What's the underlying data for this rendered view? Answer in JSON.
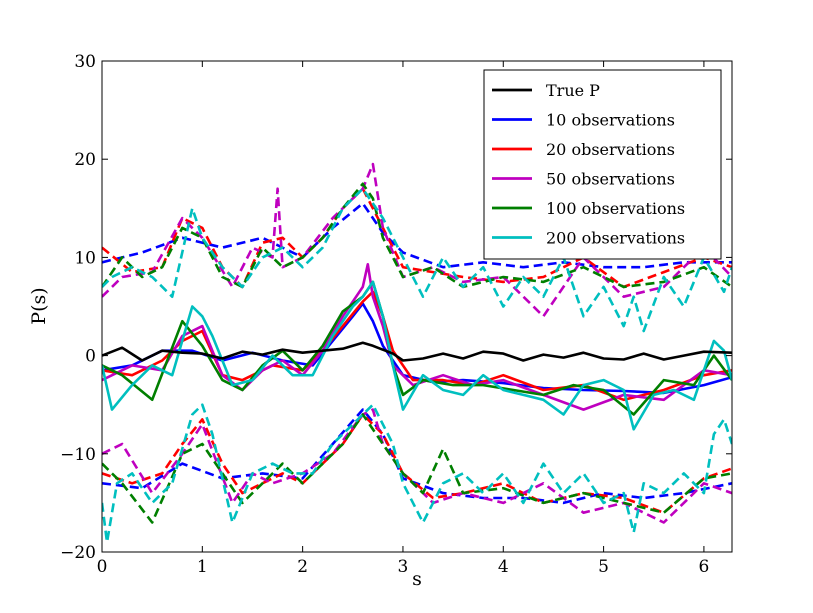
{
  "chart_data": {
    "type": "line",
    "title": "",
    "xlabel": "s",
    "ylabel": "P(s)",
    "xlim": [
      0,
      6.28
    ],
    "ylim": [
      -20,
      30
    ],
    "xticks": [
      0,
      1,
      2,
      3,
      4,
      5,
      6
    ],
    "yticks": [
      -20,
      -10,
      0,
      10,
      20,
      30
    ],
    "ytick_labels": [
      "−20",
      "−10",
      "0",
      "10",
      "20",
      "30"
    ],
    "legend_position": "top-right",
    "series": [
      {
        "name": "True P",
        "color": "#000000",
        "style": "solid",
        "x": [
          0,
          0.2,
          0.4,
          0.6,
          0.8,
          1.0,
          1.2,
          1.4,
          1.6,
          1.8,
          2.0,
          2.2,
          2.4,
          2.5,
          2.6,
          2.7,
          2.8,
          2.9,
          3.0,
          3.2,
          3.4,
          3.6,
          3.8,
          4.0,
          4.2,
          4.4,
          4.6,
          4.8,
          5.0,
          5.2,
          5.4,
          5.6,
          5.8,
          6.0,
          6.28
        ],
        "y": [
          0,
          0.8,
          -0.5,
          0.5,
          0.3,
          0.2,
          -0.3,
          0.4,
          0.1,
          0.6,
          0.3,
          0.5,
          0.7,
          1.0,
          1.3,
          1.0,
          0.6,
          0.2,
          -0.5,
          -0.3,
          0.2,
          -0.3,
          0.4,
          0.2,
          -0.5,
          0.1,
          -0.2,
          0.3,
          -0.3,
          -0.4,
          0.2,
          -0.4,
          0.0,
          0.4,
          0.3
        ]
      },
      {
        "name": "10 observations",
        "color": "#0000ff",
        "style": "solid",
        "x": [
          0,
          0.3,
          0.6,
          0.9,
          1.2,
          1.5,
          1.8,
          2.1,
          2.3,
          2.5,
          2.6,
          2.7,
          2.8,
          3.0,
          3.3,
          3.6,
          4.0,
          4.4,
          4.8,
          5.2,
          5.6,
          6.0,
          6.28
        ],
        "y": [
          -1.5,
          -1.0,
          0.5,
          0.5,
          -0.5,
          0.3,
          -0.5,
          -1.0,
          1.5,
          4.0,
          5.3,
          3.5,
          1.0,
          -2.0,
          -2.7,
          -2.5,
          -2.8,
          -3.3,
          -3.5,
          -3.6,
          -3.8,
          -3.0,
          -2.2
        ]
      },
      {
        "name": "20 observations",
        "color": "#ff0000",
        "style": "solid",
        "x": [
          0,
          0.3,
          0.6,
          0.8,
          1.0,
          1.2,
          1.4,
          1.7,
          2.0,
          2.2,
          2.4,
          2.6,
          2.7,
          2.8,
          2.9,
          3.1,
          3.4,
          3.7,
          4.0,
          4.4,
          4.8,
          5.2,
          5.6,
          6.0,
          6.28
        ],
        "y": [
          -1.5,
          -2.0,
          -0.5,
          1.5,
          2.5,
          -2.0,
          -2.5,
          -1.0,
          -1.5,
          0.5,
          3.0,
          5.5,
          6.5,
          4.0,
          0.5,
          -2.5,
          -2.5,
          -3.0,
          -2.0,
          -3.5,
          -3.0,
          -4.5,
          -3.5,
          -2.0,
          -1.5
        ]
      },
      {
        "name": "50 observations",
        "color": "#bf00bf",
        "style": "solid",
        "x": [
          0,
          0.3,
          0.6,
          0.8,
          1.0,
          1.2,
          1.4,
          1.6,
          1.8,
          2.0,
          2.2,
          2.4,
          2.6,
          2.65,
          2.7,
          2.8,
          2.9,
          3.1,
          3.4,
          3.7,
          4.0,
          4.4,
          4.8,
          5.2,
          5.6,
          6.0,
          6.28
        ],
        "y": [
          -2.5,
          -1.0,
          -1.5,
          2.0,
          3.0,
          -2.0,
          -3.5,
          -1.5,
          -0.5,
          -2.0,
          0.5,
          4.0,
          7.0,
          9.3,
          6.0,
          3.0,
          -1.0,
          -3.0,
          -2.0,
          -3.0,
          -2.5,
          -4.0,
          -5.5,
          -4.0,
          -4.5,
          -1.5,
          -2.0
        ]
      },
      {
        "name": "100 observations",
        "color": "#007f00",
        "style": "solid",
        "x": [
          0,
          0.2,
          0.5,
          0.8,
          1.0,
          1.2,
          1.4,
          1.6,
          1.8,
          2.0,
          2.2,
          2.4,
          2.6,
          2.7,
          2.8,
          2.9,
          3.0,
          3.2,
          3.5,
          3.8,
          4.1,
          4.4,
          4.7,
          5.0,
          5.3,
          5.6,
          5.9,
          6.1,
          6.28
        ],
        "y": [
          -1.0,
          -2.0,
          -4.5,
          3.5,
          1.0,
          -2.5,
          -3.5,
          -1.0,
          0.5,
          -1.5,
          1.0,
          4.5,
          6.0,
          7.5,
          4.0,
          -1.0,
          -4.0,
          -2.5,
          -3.0,
          -3.0,
          -3.5,
          -4.0,
          -3.0,
          -3.5,
          -6.0,
          -2.5,
          -3.0,
          0.0,
          -2.5
        ]
      },
      {
        "name": "200 observations",
        "color": "#00bfbf",
        "style": "solid",
        "x": [
          0,
          0.1,
          0.3,
          0.5,
          0.7,
          0.9,
          1.0,
          1.1,
          1.3,
          1.5,
          1.7,
          1.9,
          2.1,
          2.3,
          2.5,
          2.6,
          2.7,
          2.8,
          2.9,
          3.0,
          3.2,
          3.4,
          3.6,
          3.8,
          4.0,
          4.2,
          4.4,
          4.6,
          4.8,
          5.0,
          5.2,
          5.3,
          5.5,
          5.7,
          5.9,
          6.1,
          6.2,
          6.28
        ],
        "y": [
          -1.0,
          -5.5,
          -3.0,
          -1.0,
          -2.0,
          5.0,
          4.0,
          2.0,
          -3.0,
          -2.5,
          0.0,
          -2.0,
          -2.0,
          2.0,
          5.0,
          6.0,
          7.5,
          4.0,
          -1.0,
          -5.5,
          -2.0,
          -3.5,
          -4.0,
          -2.0,
          -3.5,
          -4.0,
          -4.5,
          -6.0,
          -3.0,
          -2.5,
          -3.5,
          -7.5,
          -4.0,
          -3.5,
          -4.5,
          1.5,
          0.5,
          -2.5
        ]
      },
      {
        "name": "10 observations upper",
        "color": "#0000ff",
        "style": "dashed",
        "x": [
          0,
          0.4,
          0.8,
          1.2,
          1.6,
          2.0,
          2.3,
          2.6,
          2.8,
          3.0,
          3.4,
          3.8,
          4.2,
          4.6,
          5.0,
          5.4,
          5.8,
          6.28
        ],
        "y": [
          9.5,
          10.5,
          12.0,
          11.0,
          12.0,
          10.0,
          13.0,
          15.5,
          12.5,
          10.5,
          9.0,
          9.5,
          9.0,
          9.5,
          9.0,
          9.0,
          9.5,
          9.5
        ]
      },
      {
        "name": "10 observations lower",
        "color": "#0000ff",
        "style": "dashed",
        "x": [
          0,
          0.4,
          0.8,
          1.2,
          1.6,
          2.0,
          2.3,
          2.6,
          2.8,
          3.0,
          3.4,
          3.8,
          4.2,
          4.6,
          5.0,
          5.4,
          5.8,
          6.28
        ],
        "y": [
          -13.0,
          -13.5,
          -11.0,
          -12.5,
          -12.0,
          -12.5,
          -9.0,
          -5.5,
          -8.0,
          -12.5,
          -14.0,
          -14.5,
          -14.5,
          -15.0,
          -14.0,
          -14.5,
          -14.0,
          -13.0
        ]
      },
      {
        "name": "20 observations upper",
        "color": "#ff0000",
        "style": "dashed",
        "x": [
          0,
          0.3,
          0.6,
          0.8,
          1.0,
          1.2,
          1.4,
          1.6,
          1.8,
          2.0,
          2.2,
          2.4,
          2.6,
          2.8,
          3.0,
          3.3,
          3.6,
          4.0,
          4.4,
          4.8,
          5.2,
          5.6,
          6.0,
          6.28
        ],
        "y": [
          11.0,
          8.5,
          9.0,
          14.0,
          13.0,
          9.0,
          7.0,
          11.5,
          12.0,
          10.0,
          12.0,
          15.0,
          17.0,
          13.0,
          9.0,
          8.5,
          8.0,
          7.5,
          8.0,
          10.0,
          7.0,
          8.5,
          10.0,
          9.0
        ]
      },
      {
        "name": "20 observations lower",
        "color": "#ff0000",
        "style": "dashed",
        "x": [
          0,
          0.3,
          0.6,
          0.8,
          1.0,
          1.2,
          1.4,
          1.6,
          1.8,
          2.0,
          2.2,
          2.4,
          2.6,
          2.8,
          3.0,
          3.3,
          3.6,
          4.0,
          4.4,
          4.8,
          5.2,
          5.6,
          6.0,
          6.28
        ],
        "y": [
          -12.0,
          -13.0,
          -12.0,
          -9.0,
          -6.5,
          -11.0,
          -14.0,
          -13.0,
          -12.0,
          -13.0,
          -11.0,
          -9.0,
          -6.0,
          -8.0,
          -12.0,
          -14.5,
          -14.0,
          -13.0,
          -15.0,
          -14.0,
          -14.5,
          -16.0,
          -12.5,
          -11.5
        ]
      },
      {
        "name": "50 observations upper",
        "color": "#bf00bf",
        "style": "dashed",
        "x": [
          0,
          0.2,
          0.5,
          0.8,
          1.0,
          1.3,
          1.5,
          1.7,
          1.75,
          1.8,
          2.0,
          2.3,
          2.6,
          2.7,
          2.8,
          3.0,
          3.3,
          3.6,
          4.0,
          4.4,
          4.8,
          5.2,
          5.6,
          6.0,
          6.28
        ],
        "y": [
          6.0,
          8.0,
          8.5,
          14.0,
          12.0,
          7.0,
          11.0,
          10.0,
          17.0,
          9.0,
          10.0,
          14.0,
          17.0,
          19.5,
          13.0,
          8.0,
          9.0,
          7.5,
          8.0,
          4.0,
          10.0,
          6.0,
          7.0,
          11.0,
          8.0
        ]
      },
      {
        "name": "50 observations lower",
        "color": "#bf00bf",
        "style": "dashed",
        "x": [
          0,
          0.2,
          0.5,
          0.8,
          1.0,
          1.3,
          1.5,
          1.7,
          2.0,
          2.3,
          2.6,
          2.7,
          2.8,
          3.0,
          3.3,
          3.6,
          4.0,
          4.4,
          4.8,
          5.2,
          5.6,
          6.0,
          6.28
        ],
        "y": [
          -10.0,
          -9.0,
          -14.0,
          -10.0,
          -7.0,
          -15.0,
          -12.0,
          -13.0,
          -12.0,
          -10.0,
          -6.0,
          -5.5,
          -9.0,
          -12.0,
          -15.0,
          -14.0,
          -15.0,
          -13.0,
          -16.0,
          -15.0,
          -17.0,
          -13.0,
          -14.0
        ]
      },
      {
        "name": "100 observations upper",
        "color": "#007f00",
        "style": "dashed",
        "x": [
          0,
          0.2,
          0.4,
          0.6,
          0.8,
          1.0,
          1.2,
          1.4,
          1.6,
          1.8,
          2.0,
          2.2,
          2.4,
          2.6,
          2.7,
          2.8,
          3.0,
          3.3,
          3.6,
          4.0,
          4.4,
          4.8,
          5.2,
          5.6,
          6.0,
          6.28
        ],
        "y": [
          7.0,
          10.0,
          8.0,
          9.0,
          13.0,
          12.0,
          8.0,
          7.0,
          11.0,
          9.0,
          10.0,
          12.0,
          15.0,
          17.5,
          16.0,
          12.0,
          8.0,
          9.0,
          7.0,
          8.0,
          7.5,
          9.0,
          7.0,
          7.5,
          9.0,
          7.0
        ]
      },
      {
        "name": "100 observations lower",
        "color": "#007f00",
        "style": "dashed",
        "x": [
          0,
          0.2,
          0.5,
          0.8,
          1.0,
          1.2,
          1.4,
          1.6,
          1.8,
          2.0,
          2.2,
          2.4,
          2.6,
          2.8,
          3.0,
          3.2,
          3.4,
          3.6,
          4.0,
          4.4,
          4.8,
          5.2,
          5.6,
          6.0,
          6.28
        ],
        "y": [
          -11.0,
          -13.0,
          -17.0,
          -10.0,
          -9.0,
          -12.0,
          -15.0,
          -13.0,
          -11.0,
          -13.0,
          -11.0,
          -9.0,
          -6.0,
          -9.0,
          -12.0,
          -14.0,
          -9.5,
          -14.0,
          -13.5,
          -15.0,
          -14.0,
          -15.0,
          -16.0,
          -12.5,
          -12.0
        ]
      },
      {
        "name": "200 observations upper",
        "color": "#00bfbf",
        "style": "dashed",
        "x": [
          0,
          0.1,
          0.3,
          0.5,
          0.7,
          0.9,
          1.0,
          1.2,
          1.4,
          1.6,
          1.8,
          2.0,
          2.2,
          2.4,
          2.6,
          2.8,
          3.0,
          3.2,
          3.4,
          3.6,
          3.8,
          4.0,
          4.2,
          4.4,
          4.6,
          4.8,
          5.0,
          5.2,
          5.3,
          5.4,
          5.6,
          5.8,
          6.0,
          6.2,
          6.28
        ],
        "y": [
          7.0,
          8.0,
          9.0,
          8.0,
          6.0,
          15.0,
          12.0,
          9.0,
          7.0,
          10.0,
          11.0,
          9.0,
          11.0,
          15.0,
          17.0,
          14.0,
          10.0,
          6.0,
          10.0,
          7.0,
          9.0,
          5.0,
          8.0,
          6.0,
          10.0,
          4.0,
          7.0,
          3.0,
          6.0,
          2.5,
          8.0,
          5.0,
          10.0,
          6.5,
          9.0
        ]
      },
      {
        "name": "200 observations lower",
        "color": "#00bfbf",
        "style": "dashed",
        "x": [
          0,
          0.05,
          0.15,
          0.3,
          0.5,
          0.7,
          0.9,
          1.0,
          1.1,
          1.3,
          1.5,
          1.7,
          1.9,
          2.1,
          2.3,
          2.5,
          2.7,
          2.9,
          3.0,
          3.2,
          3.4,
          3.6,
          3.8,
          4.0,
          4.2,
          4.4,
          4.6,
          4.8,
          5.0,
          5.2,
          5.3,
          5.4,
          5.6,
          5.8,
          6.0,
          6.1,
          6.2,
          6.28
        ],
        "y": [
          -15.0,
          -19.0,
          -13.0,
          -12.0,
          -15.0,
          -13.0,
          -6.0,
          -5.0,
          -8.0,
          -17.0,
          -12.0,
          -11.0,
          -12.0,
          -12.0,
          -9.0,
          -7.0,
          -5.0,
          -9.0,
          -13.0,
          -17.0,
          -13.0,
          -12.0,
          -14.0,
          -12.0,
          -15.0,
          -11.0,
          -14.0,
          -12.0,
          -15.0,
          -14.0,
          -18.0,
          -13.0,
          -14.0,
          -12.0,
          -14.0,
          -8.0,
          -6.5,
          -9.0
        ]
      }
    ],
    "legend_entries": [
      {
        "label": "True P",
        "color": "#000000"
      },
      {
        "label": "10 observations",
        "color": "#0000ff"
      },
      {
        "label": "20 observations",
        "color": "#ff0000"
      },
      {
        "label": "50 observations",
        "color": "#bf00bf"
      },
      {
        "label": "100 observations",
        "color": "#007f00"
      },
      {
        "label": "200 observations",
        "color": "#00bfbf"
      }
    ]
  }
}
